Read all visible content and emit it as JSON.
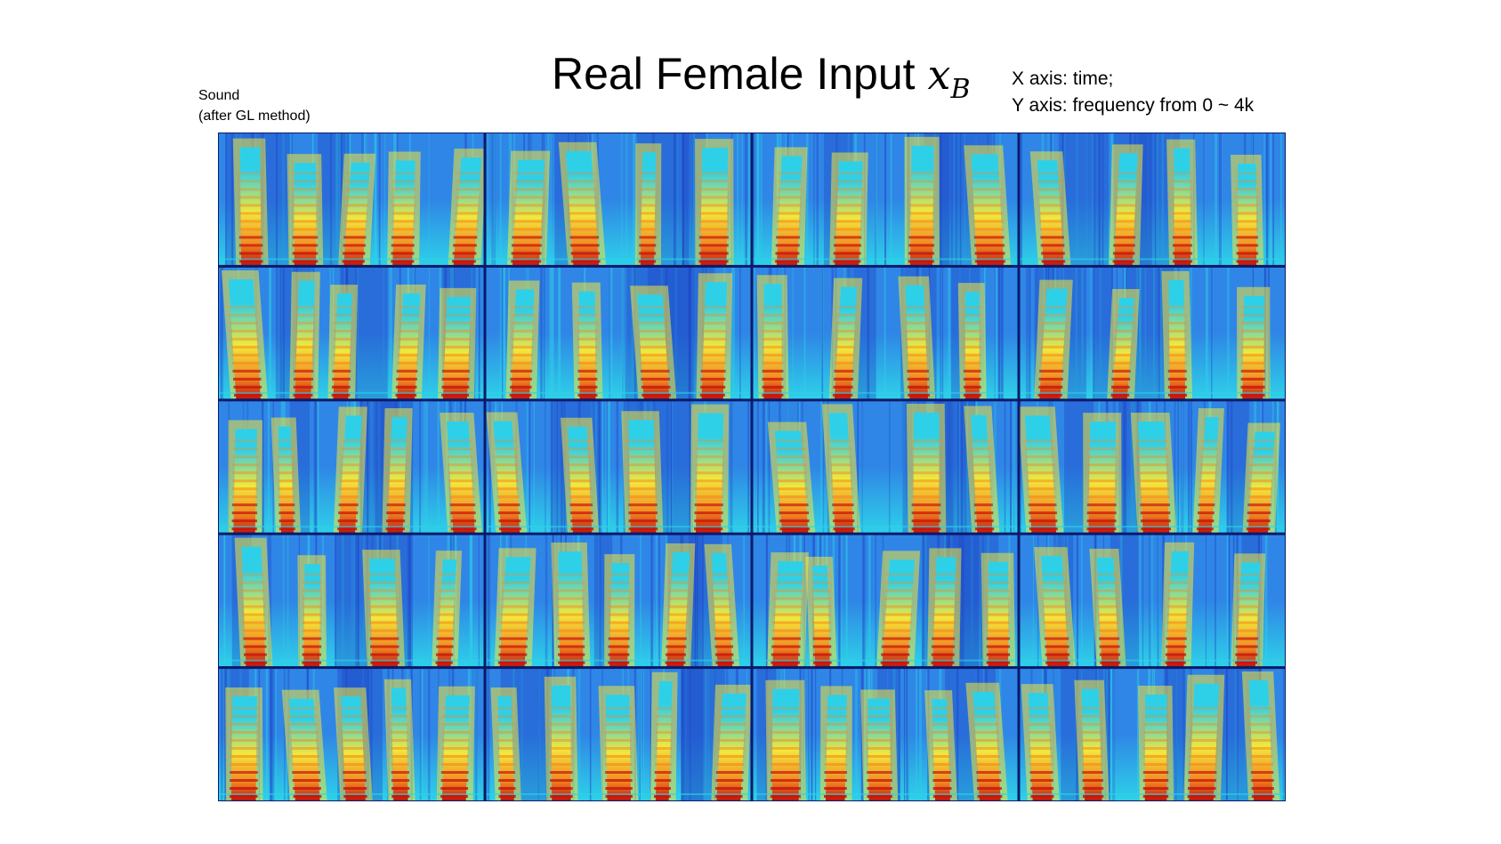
{
  "title": {
    "text": "Real Female Input",
    "variable": "x",
    "subscript": "B"
  },
  "axis_note": {
    "line1": "X axis: time;",
    "line2": "Y axis: frequency from 0 ~ 4k"
  },
  "sound_note": {
    "line1": "Sound",
    "line2": "(after GL method)"
  },
  "grid": {
    "rows": 5,
    "cols": 4,
    "description_key": "spectrogram-tiles",
    "colormap": [
      "#1e3fc4",
      "#2f86e6",
      "#2ed0e8",
      "#f2e83a",
      "#f28a22",
      "#c4150c"
    ],
    "background_color": "#2aa8e8",
    "separator_color": "#0a1a6b"
  }
}
